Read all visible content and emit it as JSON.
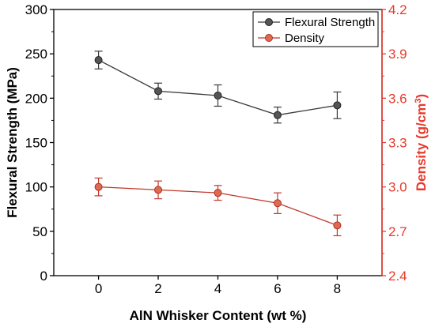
{
  "chart_data": {
    "type": "line",
    "title": "",
    "x": [
      0,
      2,
      4,
      6,
      8
    ],
    "xlabel": "AlN Whisker Content (wt %)",
    "xlim": [
      -1.5,
      9.5
    ],
    "xticks": [
      "0",
      "2",
      "4",
      "6",
      "8"
    ],
    "y_left": {
      "label": "Flexural Strength (MPa)",
      "lim": [
        0,
        300
      ],
      "ticks": [
        "0",
        "50",
        "100",
        "150",
        "200",
        "250",
        "300"
      ],
      "color": "#000000"
    },
    "y_right": {
      "label_main": "Density (g/cm",
      "label_sup": "3",
      "label_close": ")",
      "lim": [
        2.4,
        4.2
      ],
      "ticks": [
        "2.4",
        "2.7",
        "3.0",
        "3.3",
        "3.6",
        "3.9",
        "4.2"
      ],
      "color": "#e8392b"
    },
    "series": [
      {
        "name": "Flexural Strength",
        "axis": "left",
        "color": "#3a3a3a",
        "values": [
          243,
          208,
          203,
          181,
          192
        ],
        "errors": [
          10,
          9,
          12,
          9,
          15
        ]
      },
      {
        "name": "Density",
        "axis": "right",
        "color": "#c0392b",
        "values": [
          3.0,
          2.98,
          2.96,
          2.89,
          2.74
        ],
        "errors": [
          0.06,
          0.06,
          0.05,
          0.07,
          0.07
        ]
      }
    ],
    "legend": "top-right",
    "grid": false
  }
}
